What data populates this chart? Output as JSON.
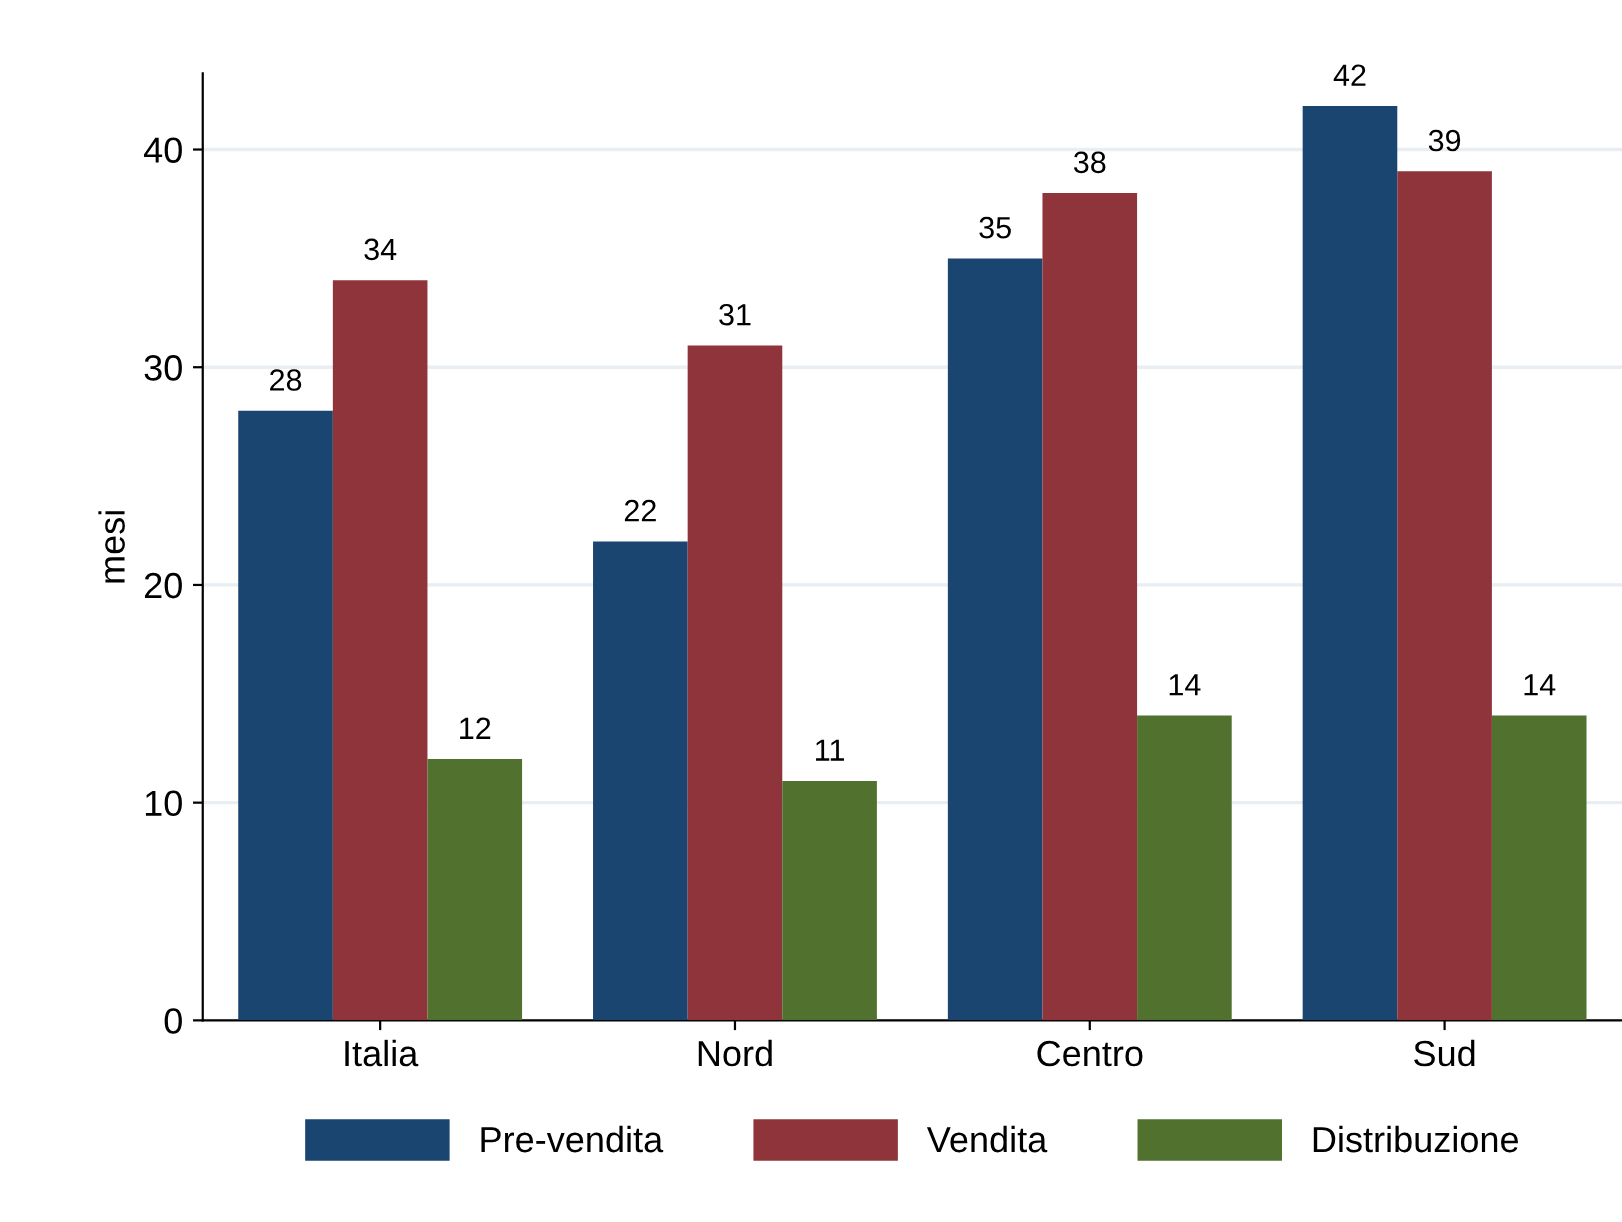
{
  "chart_data": {
    "type": "bar",
    "ylabel": "mesi",
    "categories": [
      "Italia",
      "Nord",
      "Centro",
      "Sud"
    ],
    "series": [
      {
        "name": "Pre-vendita",
        "color": "#1a4570",
        "values": [
          28,
          22,
          35,
          42
        ]
      },
      {
        "name": "Vendita",
        "color": "#8f343b",
        "values": [
          34,
          31,
          38,
          39
        ]
      },
      {
        "name": "Distribuzione",
        "color": "#51712f",
        "values": [
          12,
          11,
          14,
          14
        ]
      }
    ],
    "ylim": [
      0,
      43.5
    ],
    "yticks": [
      0,
      10,
      20,
      30,
      40
    ],
    "grid": "y",
    "legend": "bottom",
    "data_labels": true
  }
}
